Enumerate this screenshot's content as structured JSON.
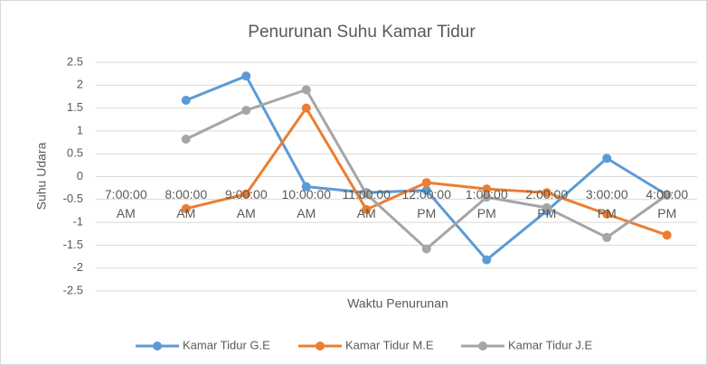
{
  "chart_data": {
    "type": "line",
    "title": "Penurunan Suhu Kamar Tidur",
    "x_label": "Waktu Penurunan",
    "y_label": "Suhu Udara",
    "categories": [
      "7:00:00 AM",
      "8:00:00 AM",
      "9:00:00 AM",
      "10:00:00 AM",
      "11:00:00 AM",
      "12:00:00 PM",
      "1:00:00 PM",
      "2:00:00 PM",
      "3:00:00 PM",
      "4:00:00 PM"
    ],
    "series": [
      {
        "name": "Kamar Tidur G.E",
        "color": "#5b9bd5",
        "values": [
          null,
          1.67,
          2.2,
          -0.22,
          -0.35,
          -0.3,
          -1.82,
          -0.75,
          0.4,
          -0.4
        ]
      },
      {
        "name": "Kamar Tidur M.E",
        "color": "#ed7d31",
        "values": [
          null,
          -0.7,
          -0.38,
          1.5,
          -0.72,
          -0.13,
          -0.27,
          -0.35,
          -0.82,
          -1.28
        ]
      },
      {
        "name": "Kamar Tidur J.E",
        "color": "#a5a5a5",
        "values": [
          null,
          0.82,
          1.45,
          1.9,
          -0.38,
          -1.58,
          -0.45,
          -0.68,
          -1.33,
          -0.4
        ]
      }
    ],
    "ylim": [
      -2.5,
      2.5
    ],
    "yticks": [
      2.5,
      2,
      1.5,
      1,
      0.5,
      0,
      -0.5,
      -1,
      -1.5,
      -2,
      -2.5
    ],
    "grid": true,
    "legend": "bottom"
  }
}
